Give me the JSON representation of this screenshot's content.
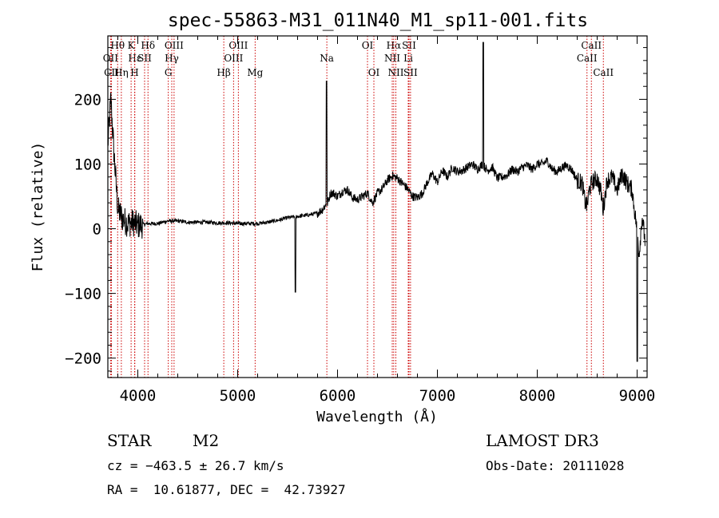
{
  "chart_data": {
    "type": "line",
    "title": "spec-55863-M31_011N40_M1_sp11-001.fits",
    "xlabel": "Wavelength (Å)",
    "ylabel": "Flux (relative)",
    "xlim": [
      3700,
      9100
    ],
    "ylim": [
      -230,
      298
    ],
    "xticks": [
      4000,
      5000,
      6000,
      7000,
      8000,
      9000
    ],
    "yticks": [
      -200,
      -100,
      0,
      100,
      200
    ],
    "xtick_labels": [
      "4000",
      "5000",
      "6000",
      "7000",
      "8000",
      "9000"
    ],
    "ytick_labels": [
      "−200",
      "−100",
      "0",
      "100",
      "200"
    ],
    "spectrum_anchors": [
      [
        3700,
        130
      ],
      [
        3730,
        200
      ],
      [
        3760,
        120
      ],
      [
        3800,
        30
      ],
      [
        3850,
        15
      ],
      [
        3900,
        8
      ],
      [
        3950,
        10
      ],
      [
        4000,
        5
      ],
      [
        4100,
        8
      ],
      [
        4200,
        8
      ],
      [
        4300,
        12
      ],
      [
        4400,
        12
      ],
      [
        4500,
        10
      ],
      [
        4600,
        10
      ],
      [
        4700,
        10
      ],
      [
        4800,
        9
      ],
      [
        4900,
        9
      ],
      [
        5000,
        8
      ],
      [
        5100,
        8
      ],
      [
        5200,
        8
      ],
      [
        5300,
        10
      ],
      [
        5400,
        13
      ],
      [
        5500,
        17
      ],
      [
        5600,
        19
      ],
      [
        5700,
        21
      ],
      [
        5800,
        24
      ],
      [
        5850,
        30
      ],
      [
        5900,
        40
      ],
      [
        5930,
        55
      ],
      [
        5960,
        55
      ],
      [
        6000,
        50
      ],
      [
        6050,
        58
      ],
      [
        6100,
        60
      ],
      [
        6150,
        48
      ],
      [
        6200,
        45
      ],
      [
        6250,
        50
      ],
      [
        6300,
        55
      ],
      [
        6350,
        40
      ],
      [
        6400,
        55
      ],
      [
        6450,
        62
      ],
      [
        6500,
        75
      ],
      [
        6550,
        82
      ],
      [
        6600,
        78
      ],
      [
        6650,
        70
      ],
      [
        6700,
        62
      ],
      [
        6750,
        50
      ],
      [
        6800,
        48
      ],
      [
        6850,
        55
      ],
      [
        6900,
        72
      ],
      [
        6950,
        85
      ],
      [
        7000,
        72
      ],
      [
        7050,
        90
      ],
      [
        7100,
        80
      ],
      [
        7150,
        95
      ],
      [
        7200,
        88
      ],
      [
        7250,
        90
      ],
      [
        7300,
        95
      ],
      [
        7350,
        100
      ],
      [
        7400,
        92
      ],
      [
        7450,
        100
      ],
      [
        7500,
        90
      ],
      [
        7550,
        95
      ],
      [
        7600,
        78
      ],
      [
        7650,
        80
      ],
      [
        7700,
        83
      ],
      [
        7750,
        92
      ],
      [
        7800,
        88
      ],
      [
        7850,
        95
      ],
      [
        7900,
        98
      ],
      [
        7950,
        92
      ],
      [
        8000,
        100
      ],
      [
        8050,
        100
      ],
      [
        8100,
        105
      ],
      [
        8150,
        92
      ],
      [
        8200,
        88
      ],
      [
        8250,
        95
      ],
      [
        8300,
        98
      ],
      [
        8350,
        90
      ],
      [
        8400,
        75
      ],
      [
        8450,
        70
      ],
      [
        8480,
        40
      ],
      [
        8500,
        35
      ],
      [
        8520,
        60
      ],
      [
        8550,
        72
      ],
      [
        8600,
        78
      ],
      [
        8640,
        55
      ],
      [
        8660,
        30
      ],
      [
        8700,
        75
      ],
      [
        8750,
        80
      ],
      [
        8800,
        60
      ],
      [
        8850,
        85
      ],
      [
        8900,
        70
      ],
      [
        8950,
        60
      ],
      [
        8980,
        20
      ],
      [
        9000,
        0
      ],
      [
        9020,
        -40
      ],
      [
        9050,
        20
      ],
      [
        9080,
        -20
      ]
    ],
    "spikes": [
      {
        "x": 5577,
        "y": -98
      },
      {
        "x": 5890,
        "y": 228
      },
      {
        "x": 7460,
        "y": 288
      },
      {
        "x": 9000,
        "y": -205
      }
    ],
    "line_markers": [
      {
        "label": "Hθ",
        "wavelength": 3798,
        "row": 1
      },
      {
        "label": "OII",
        "wavelength": 3727,
        "row": 2
      },
      {
        "label": "CII",
        "wavelength": 3736,
        "row": 3
      },
      {
        "label": "Hε",
        "wavelength": 3970,
        "row": 2
      },
      {
        "label": "Hη",
        "wavelength": 3835,
        "row": 3
      },
      {
        "label": "K",
        "wavelength": 3933,
        "row": 1
      },
      {
        "label": "SII",
        "wavelength": 4068,
        "row": 2
      },
      {
        "label": "H",
        "wavelength": 3968,
        "row": 3
      },
      {
        "label": "Hδ",
        "wavelength": 4102,
        "row": 1
      },
      {
        "label": "OIII",
        "wavelength": 4363,
        "row": 1
      },
      {
        "label": "Hγ",
        "wavelength": 4340,
        "row": 2
      },
      {
        "label": "G",
        "wavelength": 4305,
        "row": 3
      },
      {
        "label": "Hβ",
        "wavelength": 4861,
        "row": 3
      },
      {
        "label": "OIII",
        "wavelength": 5007,
        "row": 1
      },
      {
        "label": "OIII",
        "wavelength": 4959,
        "row": 2
      },
      {
        "label": "Mg",
        "wavelength": 5175,
        "row": 3
      },
      {
        "label": "Na",
        "wavelength": 5893,
        "row": 2
      },
      {
        "label": "OI",
        "wavelength": 6300,
        "row": 1
      },
      {
        "label": "OI",
        "wavelength": 6364,
        "row": 3
      },
      {
        "label": "Hα",
        "wavelength": 6563,
        "row": 1
      },
      {
        "label": "SII",
        "wavelength": 6716,
        "row": 1
      },
      {
        "label": "NII",
        "wavelength": 6548,
        "row": 2
      },
      {
        "label": "Li",
        "wavelength": 6708,
        "row": 2
      },
      {
        "label": "NII",
        "wavelength": 6584,
        "row": 3
      },
      {
        "label": "SII",
        "wavelength": 6731,
        "row": 3
      },
      {
        "label": "CaII",
        "wavelength": 8542,
        "row": 1
      },
      {
        "label": "CaII",
        "wavelength": 8498,
        "row": 2
      },
      {
        "label": "CaII",
        "wavelength": 8662,
        "row": 3
      }
    ],
    "marker_color": "#cc0000"
  },
  "info": {
    "class": "STAR",
    "subclass": "M2",
    "survey": "LAMOST DR3",
    "redshift": "cz = −463.5 ± 26.7 km/s",
    "obs_date": "Obs-Date: 20111028",
    "coords": "RA =  10.61877, DEC =  42.73927"
  }
}
